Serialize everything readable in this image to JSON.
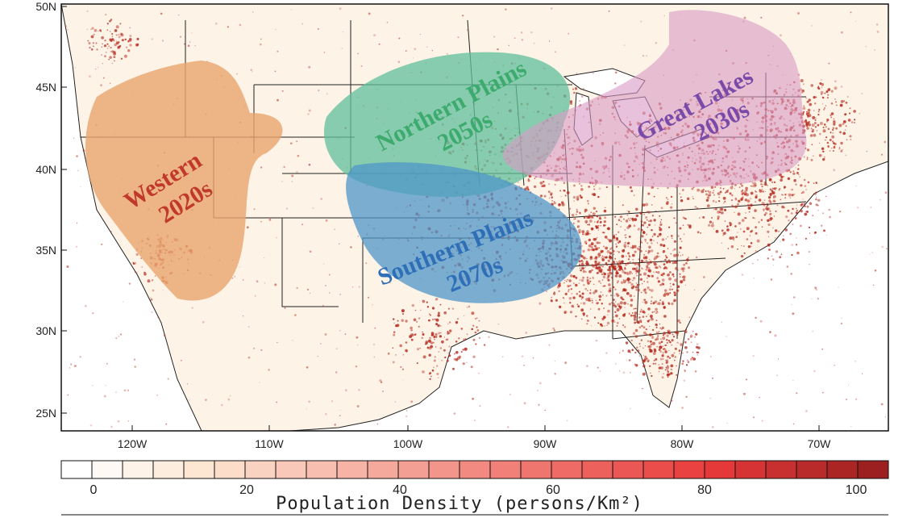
{
  "map": {
    "lat_ticks": [
      "50N",
      "45N",
      "40N",
      "35N",
      "30N",
      "25N"
    ],
    "lon_ticks": [
      "120W",
      "110W",
      "100W",
      "90W",
      "80W",
      "70W"
    ],
    "regions": [
      {
        "id": "western",
        "line1": "Western",
        "line2": "2020s",
        "fill": "#e8a56e",
        "text_color": "#c0392b"
      },
      {
        "id": "northern-plains",
        "line1": "Northern Plains",
        "line2": "2050s",
        "fill": "#5fbf9b",
        "text_color": "#3daa6e"
      },
      {
        "id": "southern-plains",
        "line1": "Southern Plains",
        "line2": "2070s",
        "fill": "#4f95c8",
        "text_color": "#2f6fb8"
      },
      {
        "id": "great-lakes",
        "line1": "Great Lakes",
        "line2": "2030s",
        "fill": "#d99ac5",
        "text_color": "#7a4aa8"
      }
    ],
    "land_color": "#fdf3e7",
    "city_color": "#b52a1e"
  },
  "colorbar": {
    "tick_labels": [
      "0",
      "20",
      "40",
      "60",
      "80",
      "100"
    ],
    "title": "Population Density (persons/Km²)",
    "color_start": "#ffffff",
    "color_end": "#9c2020"
  }
}
